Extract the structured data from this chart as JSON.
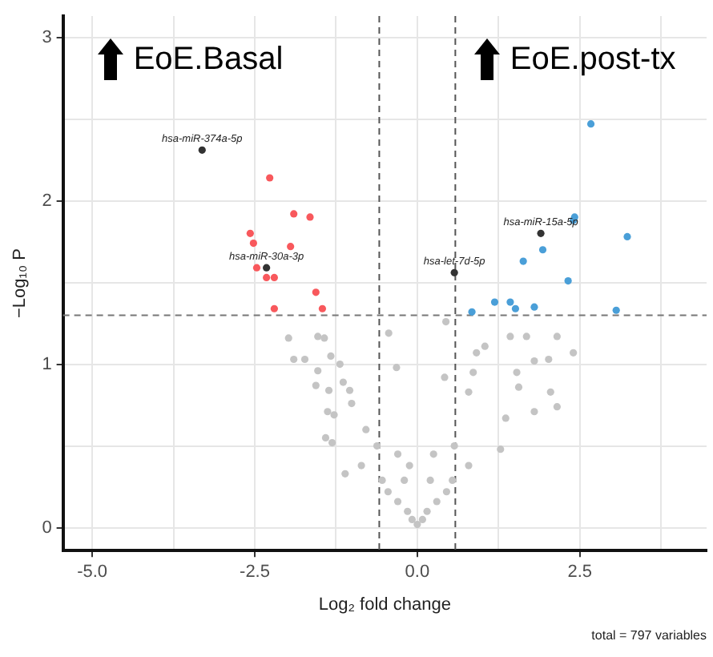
{
  "chart_data": {
    "type": "scatter",
    "xlabel": "Log₂ fold change",
    "ylabel": "−Log₁₀ P",
    "marker": "circle",
    "grid": true,
    "xlim": [
      -5.45,
      4.45
    ],
    "ylim": [
      -0.14,
      3.13
    ],
    "xticks": [
      {
        "value": -5,
        "label": "-5.0"
      },
      {
        "value": -3.75,
        "label": null
      },
      {
        "value": -2.5,
        "label": "-2.5"
      },
      {
        "value": -1.25,
        "label": null
      },
      {
        "value": 0,
        "label": "0.0"
      },
      {
        "value": 1.25,
        "label": null
      },
      2.5,
      {
        "value": 3.75,
        "label": null
      }
    ],
    "yticks": [
      0,
      {
        "value": 0.5,
        "label": null
      },
      1,
      {
        "value": 1.5,
        "label": null
      },
      2,
      {
        "value": 2.5,
        "label": null
      },
      3
    ],
    "ref_lines": [
      {
        "axis": "x",
        "value": -0.585,
        "color": "#555555",
        "line_style": "dashed"
      },
      {
        "axis": "x",
        "value": 0.585,
        "color": "#555555",
        "line_style": "dashed"
      },
      {
        "axis": "y",
        "value": 1.3,
        "color": "#777777",
        "line_style": "dashed"
      }
    ],
    "annotations": [
      "EoE.Basal",
      "EoE.post-tx",
      "total = 797 variables",
      {
        "text": "hsa-miR-374a-5p",
        "x": -3.31,
        "y": 2.31
      },
      {
        "text": "hsa-miR-30a-3p",
        "x": -2.32,
        "y": 1.59
      },
      {
        "text": "hsa-let-7d-5p",
        "x": 0.57,
        "y": 1.56
      },
      {
        "text": "hsa-miR-15a-5p",
        "x": 1.9,
        "y": 1.8
      }
    ],
    "series": [
      {
        "color": "#c4c4c4",
        "x": [
          -1.98,
          -1.9,
          -1.73,
          -1.53,
          -1.43,
          -1.33,
          -1.53,
          -1.56,
          -1.36,
          -1.38,
          -1.28,
          -1.41,
          -1.31,
          -1.11,
          -1.14,
          -1.19,
          -1.01,
          1.43,
          1.68,
          2.15,
          2.4,
          2.02,
          1.8,
          1.04,
          0.91,
          1.53,
          2.05,
          2.15,
          1.56,
          1.8,
          1.36,
          1.28,
          0.86,
          0.79,
          0.44,
          0.42,
          -0.44,
          -0.32,
          -1.04,
          -0.79,
          -0.62,
          -0.3,
          -0.12,
          0,
          0.25,
          0.57,
          -0.2,
          0.2,
          -0.3,
          0.3,
          0.54,
          -0.54,
          0.79,
          -0.86,
          -0.45,
          0.45,
          -0.15,
          0.15,
          -0.08,
          0.08
        ],
        "values": [
          1.16,
          1.03,
          1.03,
          1.17,
          1.16,
          1.05,
          0.96,
          0.87,
          0.84,
          0.71,
          0.69,
          0.55,
          0.52,
          0.33,
          0.89,
          1,
          0.76,
          1.17,
          1.17,
          1.17,
          1.07,
          1.03,
          1.02,
          1.11,
          1.07,
          0.95,
          0.83,
          0.74,
          0.86,
          0.71,
          0.67,
          0.48,
          0.95,
          0.83,
          1.26,
          0.92,
          1.19,
          0.98,
          0.84,
          0.6,
          0.5,
          0.45,
          0.38,
          0.02,
          0.45,
          0.5,
          0.29,
          0.29,
          0.16,
          0.16,
          0.29,
          0.29,
          0.38,
          0.38,
          0.22,
          0.22,
          0.1,
          0.1,
          0.05,
          0.05
        ]
      },
      {
        "color": "#f8585c",
        "x": [
          -2.27,
          -1.9,
          -1.65,
          -2.57,
          -2.52,
          -1.95,
          -2.47,
          -2.32,
          -2.2,
          -1.56,
          -1.46,
          -2.2
        ],
        "values": [
          2.14,
          1.92,
          1.9,
          1.8,
          1.74,
          1.72,
          1.59,
          1.53,
          1.53,
          1.44,
          1.34,
          1.34
        ]
      },
      {
        "color": "#4a9fd8",
        "x": [
          2.67,
          2.42,
          2.4,
          3.23,
          1.93,
          1.63,
          2.32,
          1.19,
          1.43,
          1.51,
          1.8,
          0.84,
          3.06
        ],
        "values": [
          2.47,
          1.9,
          1.88,
          1.78,
          1.7,
          1.63,
          1.51,
          1.38,
          1.38,
          1.34,
          1.35,
          1.32,
          1.33
        ]
      },
      {
        "color": "#333333",
        "x": [
          -3.31,
          -2.32,
          0.57,
          1.9
        ],
        "values": [
          2.31,
          1.59,
          1.56,
          1.8
        ]
      }
    ]
  }
}
